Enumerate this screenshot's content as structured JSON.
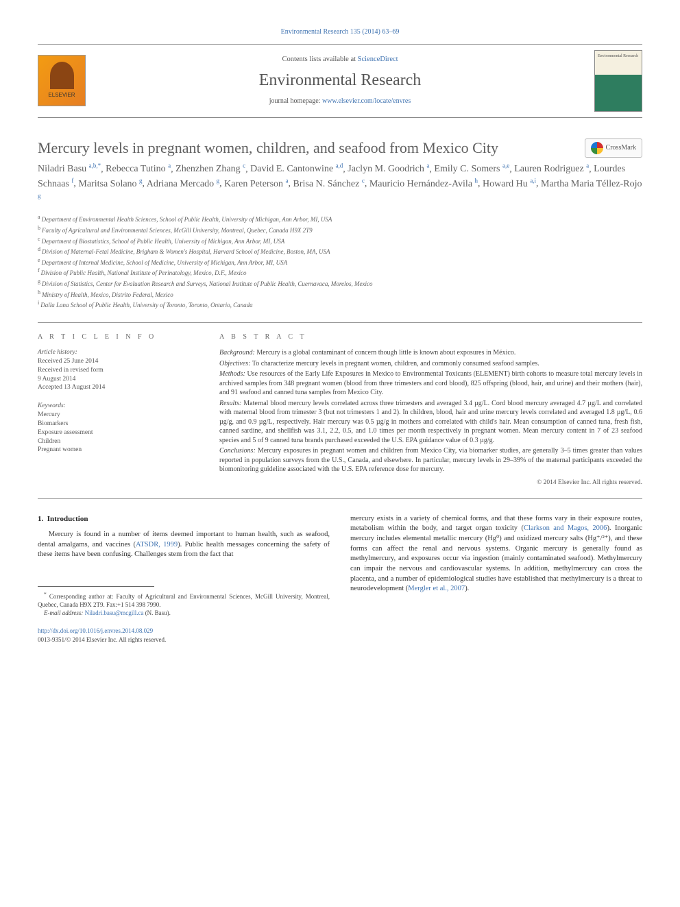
{
  "top_citation": "Environmental Research 135 (2014) 63–69",
  "header": {
    "contents_prefix": "Contents lists available at ",
    "contents_link": "ScienceDirect",
    "journal_name": "Environmental Research",
    "homepage_prefix": "journal homepage: ",
    "homepage_url": "www.elsevier.com/locate/envres",
    "elsevier_label": "ELSEVIER",
    "cover_title": "Environmental Research"
  },
  "crossmark_label": "CrossMark",
  "article": {
    "title": "Mercury levels in pregnant women, children, and seafood from Mexico City",
    "authors_html_parts": [
      {
        "name": "Niladri Basu",
        "sup": "a,b,",
        "corr": "*"
      },
      {
        "name": "Rebecca Tutino",
        "sup": "a"
      },
      {
        "name": "Zhenzhen Zhang",
        "sup": "c"
      },
      {
        "name": "David E. Cantonwine",
        "sup": "a,d"
      },
      {
        "name": "Jaclyn M. Goodrich",
        "sup": "a"
      },
      {
        "name": "Emily C. Somers",
        "sup": "a,e"
      },
      {
        "name": "Lauren Rodriguez",
        "sup": "a"
      },
      {
        "name": "Lourdes Schnaas",
        "sup": "f"
      },
      {
        "name": "Maritsa Solano",
        "sup": "g"
      },
      {
        "name": "Adriana Mercado",
        "sup": "g"
      },
      {
        "name": "Karen Peterson",
        "sup": "a"
      },
      {
        "name": "Brisa N. Sánchez",
        "sup": "c"
      },
      {
        "name": "Mauricio Hernández-Avila",
        "sup": "h"
      },
      {
        "name": "Howard Hu",
        "sup": "a,i"
      },
      {
        "name": "Martha Maria Téllez-Rojo",
        "sup": "g"
      }
    ],
    "affiliations": [
      {
        "sup": "a",
        "text": "Department of Environmental Health Sciences, School of Public Health, University of Michigan, Ann Arbor, MI, USA"
      },
      {
        "sup": "b",
        "text": "Faculty of Agricultural and Environmental Sciences, McGill University, Montreal, Quebec, Canada H9X 2T9"
      },
      {
        "sup": "c",
        "text": "Department of Biostatistics, School of Public Health, University of Michigan, Ann Arbor, MI, USA"
      },
      {
        "sup": "d",
        "text": "Division of Maternal-Fetal Medicine, Brigham & Women's Hospital, Harvard School of Medicine, Boston, MA, USA"
      },
      {
        "sup": "e",
        "text": "Department of Internal Medicine, School of Medicine, University of Michigan, Ann Arbor, MI, USA"
      },
      {
        "sup": "f",
        "text": "Division of Public Health, National Institute of Perinatology, Mexico, D.F., Mexico"
      },
      {
        "sup": "g",
        "text": "Division of Statistics, Center for Evaluation Research and Surveys, National Institute of Public Health, Cuernavaca, Morelos, Mexico"
      },
      {
        "sup": "h",
        "text": "Ministry of Health, Mexico, Distrito Federal, Mexico"
      },
      {
        "sup": "i",
        "text": "Dalla Lana School of Public Health, University of Toronto, Toronto, Ontario, Canada"
      }
    ]
  },
  "info": {
    "heading": "a r t i c l e  i n f o",
    "history_label": "Article history:",
    "history": [
      "Received 25 June 2014",
      "Received in revised form",
      "9 August 2014",
      "Accepted 13 August 2014"
    ],
    "keywords_label": "Keywords:",
    "keywords": [
      "Mercury",
      "Biomarkers",
      "Exposure assessment",
      "Children",
      "Pregnant women"
    ]
  },
  "abstract": {
    "heading": "a b s t r a c t",
    "sections": [
      {
        "label": "Background:",
        "text": " Mercury is a global contaminant of concern though little is known about exposures in México."
      },
      {
        "label": "Objectives:",
        "text": " To characterize mercury levels in pregnant women, children, and commonly consumed seafood samples."
      },
      {
        "label": "Methods:",
        "text": " Use resources of the Early Life Exposures in Mexico to Environmental Toxicants (ELEMENT) birth cohorts to measure total mercury levels in archived samples from 348 pregnant women (blood from three trimesters and cord blood), 825 offspring (blood, hair, and urine) and their mothers (hair), and 91 seafood and canned tuna samples from Mexico City."
      },
      {
        "label": "Results:",
        "text": " Maternal blood mercury levels correlated across three trimesters and averaged 3.4 µg/L. Cord blood mercury averaged 4.7 µg/L and correlated with maternal blood from trimester 3 (but not trimesters 1 and 2). In children, blood, hair and urine mercury levels correlated and averaged 1.8 µg/L, 0.6 µg/g, and 0.9 µg/L, respectively. Hair mercury was 0.5 µg/g in mothers and correlated with child's hair. Mean consumption of canned tuna, fresh fish, canned sardine, and shellfish was 3.1, 2.2, 0.5, and 1.0 times per month respectively in pregnant women. Mean mercury content in 7 of 23 seafood species and 5 of 9 canned tuna brands purchased exceeded the U.S. EPA guidance value of 0.3  µg/g."
      },
      {
        "label": "Conclusions:",
        "text": " Mercury exposures in pregnant women and children from Mexico City, via biomarker studies, are generally 3–5 times greater than values reported in population surveys from the U.S., Canada, and elsewhere. In particular, mercury levels in 29–39% of the maternal participants exceeded the biomonitoring guideline associated with the U.S. EPA reference dose for mercury."
      }
    ],
    "copyright": "© 2014 Elsevier Inc. All rights reserved."
  },
  "body": {
    "section_no": "1.",
    "section_title": "Introduction",
    "col1_p1_a": "Mercury is found in a number of items deemed important to human health, such as seafood, dental amalgams, and vaccines (",
    "col1_p1_link": "ATSDR, 1999",
    "col1_p1_b": "). Public health messages concerning the safety of these items have been confusing. Challenges stem from the fact that",
    "col2_p1_a": "mercury exists in a variety of chemical forms, and that these forms vary in their exposure routes, metabolism within the body, and target organ toxicity (",
    "col2_p1_link1": "Clarkson and Magos, 2006",
    "col2_p1_b": "). Inorganic mercury includes elemental metallic mercury (Hg⁰) and oxidized mercury salts (Hg⁺/²⁺), and these forms can affect the renal and nervous systems. Organic mercury is generally found as methylmercury, and exposures occur via ingestion (mainly contaminated seafood). Methylmercury can impair the nervous and cardiovascular systems. In addition, methylmercury can cross the placenta, and a number of epidemiological studies have established that methylmercury is a threat to neurodevelopment (",
    "col2_p1_link2": "Mergler et al., 2007",
    "col2_p1_c": ")."
  },
  "footnote": {
    "corr_marker": "*",
    "corr_text": "Corresponding author at: Faculty of Agricultural and Environmental Sciences, McGill University, Montreal, Quebec, Canada H9X 2T9. Fax:+1 514 398 7990.",
    "email_label": "E-mail address:",
    "email": "Niladri.basu@mcgill.ca",
    "email_tail": " (N. Basu)."
  },
  "footer": {
    "doi": "http://dx.doi.org/10.1016/j.envres.2014.08.029",
    "issn_line": "0013-9351/© 2014 Elsevier Inc. All rights reserved."
  },
  "colors": {
    "link": "#3e72b0",
    "heading_gray": "#606060",
    "rule": "#999999",
    "body_text": "#333333"
  },
  "typography": {
    "title_fontsize_pt": 22,
    "journal_fontsize_pt": 24,
    "authors_fontsize_pt": 14,
    "body_fontsize_pt": 10.5,
    "affil_fontsize_pt": 9,
    "abstract_fontsize_pt": 10
  }
}
